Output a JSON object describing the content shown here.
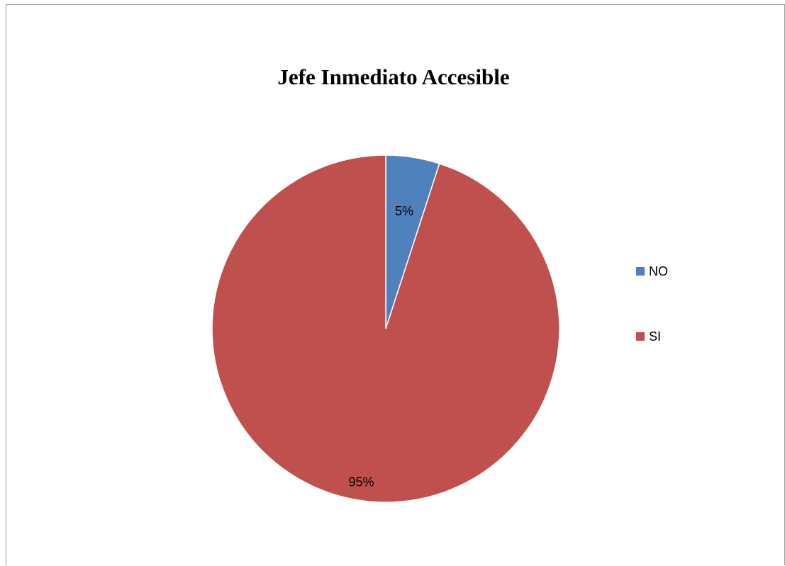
{
  "chart_data": {
    "type": "pie",
    "title": "Jefe Inmediato Accesible",
    "categories": [
      "NO",
      "SI"
    ],
    "values": [
      5,
      95
    ],
    "data_labels": [
      "5%",
      "95%"
    ],
    "colors": [
      "#4f81bd",
      "#c0504d"
    ],
    "start_angle": "12 o'clock, clockwise",
    "legend_position": "right"
  }
}
